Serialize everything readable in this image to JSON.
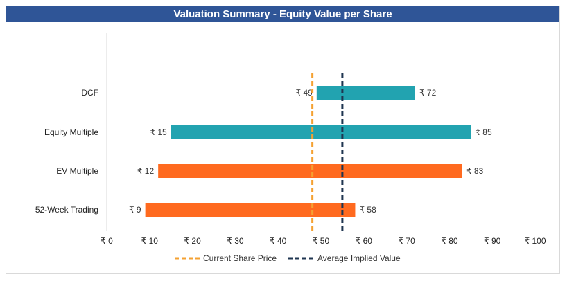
{
  "chart_data": {
    "type": "bar",
    "orientation": "horizontal",
    "title": "Valuation Summary - Equity Value per Share",
    "categories": [
      "DCF",
      "Equity Multiple",
      "EV Multiple",
      "52-Week Trading"
    ],
    "series": [
      {
        "low": 49,
        "high": 72,
        "low_label": "₹ 49",
        "high_label": "₹ 72",
        "color": "#22a3b0"
      },
      {
        "low": 15,
        "high": 85,
        "low_label": "₹ 15",
        "high_label": "₹ 85",
        "color": "#22a3b0"
      },
      {
        "low": 12,
        "high": 83,
        "low_label": "₹ 12",
        "high_label": "₹ 83",
        "color": "#ff6a1f"
      },
      {
        "low": 9,
        "high": 58,
        "low_label": "₹ 9",
        "high_label": "₹ 58",
        "color": "#ff6a1f"
      }
    ],
    "xlim": [
      0,
      100
    ],
    "x_ticks": [
      {
        "value": 0,
        "label": "₹ 0"
      },
      {
        "value": 10,
        "label": "₹ 10"
      },
      {
        "value": 20,
        "label": "₹ 20"
      },
      {
        "value": 30,
        "label": "₹ 30"
      },
      {
        "value": 40,
        "label": "₹ 40"
      },
      {
        "value": 50,
        "label": "₹ 50"
      },
      {
        "value": 60,
        "label": "₹ 60"
      },
      {
        "value": 70,
        "label": "₹ 70"
      },
      {
        "value": 80,
        "label": "₹ 80"
      },
      {
        "value": 90,
        "label": "₹ 90"
      },
      {
        "value": 100,
        "label": "₹ 100"
      }
    ],
    "reference_lines": [
      {
        "name": "Current Share Price",
        "value": 48,
        "color": "#f4a132",
        "style": "dashed"
      },
      {
        "name": "Average Implied Value",
        "value": 55,
        "color": "#1f3550",
        "style": "dashed"
      }
    ],
    "legend_position": "bottom",
    "grid": false
  }
}
